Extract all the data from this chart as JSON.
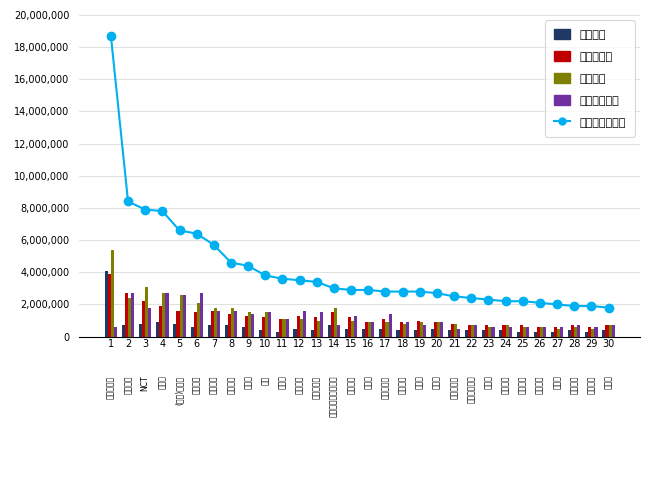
{
  "x_numbers": [
    1,
    2,
    3,
    4,
    5,
    6,
    7,
    8,
    9,
    10,
    11,
    12,
    13,
    14,
    15,
    16,
    17,
    18,
    19,
    20,
    21,
    22,
    23,
    24,
    25,
    26,
    27,
    28,
    29,
    30
  ],
  "kr_labels": [
    "방탄소년단",
    "블랙핑크",
    "NCT",
    "세븐틴",
    "(여자)아이들",
    "아이즈원",
    "트와이스",
    "오마이걸",
    "마마무",
    "엑소",
    "에스파",
    "여자친구",
    "몬스타엑스",
    "투모로우바이투게더",
    "레드벨벳",
    "나가수",
    "수퍼주니어",
    "데보이즈",
    "강세풀",
    "위클리",
    "에버글로우",
    "프로미스나인",
    "트레저",
    "러블리즈",
    "뉴이스트",
    "아스트로",
    "스텔라",
    "에이프릴",
    "소녀시대",
    "샤이니"
  ],
  "참여지수": [
    4100000,
    700000,
    800000,
    900000,
    800000,
    600000,
    700000,
    700000,
    600000,
    400000,
    300000,
    500000,
    400000,
    700000,
    500000,
    500000,
    500000,
    400000,
    400000,
    500000,
    400000,
    400000,
    400000,
    400000,
    300000,
    300000,
    300000,
    400000,
    300000,
    400000
  ],
  "미디어지수": [
    3900000,
    2700000,
    2200000,
    1900000,
    1600000,
    1500000,
    1600000,
    1400000,
    1300000,
    1200000,
    1100000,
    1300000,
    1200000,
    1500000,
    1200000,
    900000,
    1100000,
    900000,
    1000000,
    900000,
    800000,
    700000,
    700000,
    700000,
    700000,
    600000,
    600000,
    700000,
    600000,
    700000
  ],
  "소통지수": [
    5400000,
    2400000,
    3100000,
    2700000,
    2600000,
    2100000,
    1800000,
    1800000,
    1500000,
    1500000,
    1100000,
    1100000,
    1000000,
    1800000,
    1000000,
    900000,
    900000,
    800000,
    900000,
    900000,
    800000,
    700000,
    600000,
    700000,
    600000,
    600000,
    500000,
    600000,
    500000,
    700000
  ],
  "커뮤니티지수": [
    600000,
    2700000,
    1800000,
    2700000,
    2600000,
    2700000,
    1600000,
    1600000,
    1400000,
    1500000,
    1100000,
    1600000,
    1500000,
    700000,
    1300000,
    900000,
    1400000,
    900000,
    700000,
    900000,
    500000,
    700000,
    600000,
    600000,
    600000,
    600000,
    600000,
    700000,
    600000,
    700000
  ],
  "브랜드평판지수": [
    18700000,
    8400000,
    7900000,
    7800000,
    6600000,
    6400000,
    5700000,
    4600000,
    4400000,
    3800000,
    3600000,
    3500000,
    3400000,
    3000000,
    2900000,
    2900000,
    2800000,
    2800000,
    2800000,
    2700000,
    2500000,
    2400000,
    2300000,
    2200000,
    2200000,
    2100000,
    2000000,
    1900000,
    1900000,
    1800000
  ],
  "bar_width": 0.18,
  "colors": {
    "참여지수": "#1f3864",
    "미디어지수": "#c00000",
    "소통지수": "#7f7f00",
    "커뮤니티지수": "#7030a0",
    "브랜드평판지수": "#00b0f0"
  },
  "ylim": [
    0,
    20000000
  ],
  "yticks": [
    0,
    2000000,
    4000000,
    6000000,
    8000000,
    10000000,
    12000000,
    14000000,
    16000000,
    18000000,
    20000000
  ]
}
